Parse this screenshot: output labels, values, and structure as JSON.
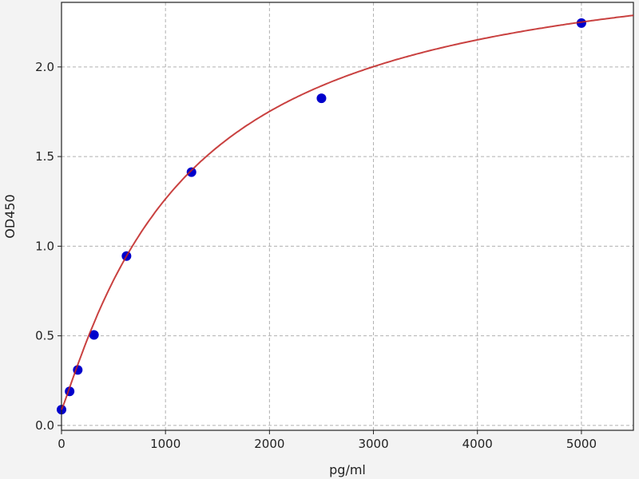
{
  "chart_data": {
    "type": "scatter",
    "title": "",
    "xlabel": "pg/ml",
    "ylabel": "OD450",
    "xlim": [
      0,
      5500
    ],
    "ylim": [
      -0.027,
      2.36
    ],
    "x_ticks": [
      "0",
      "1000",
      "2000",
      "3000",
      "4000",
      "5000"
    ],
    "y_ticks": [
      "0.0",
      "0.5",
      "1.0",
      "1.5",
      "2.0"
    ],
    "grid": true,
    "points": {
      "x": [
        0,
        78.125,
        156.25,
        312.5,
        625,
        1250,
        2500,
        5000
      ],
      "y": [
        0.088,
        0.19,
        0.31,
        0.505,
        0.945,
        1.413,
        1.825,
        2.245
      ]
    },
    "fit_curve": "4-parameter logistic",
    "colors": {
      "points": "#0000cc",
      "curve": "#c0201f",
      "grid": "#b0b0b0",
      "background": "#f3f3f3"
    }
  }
}
